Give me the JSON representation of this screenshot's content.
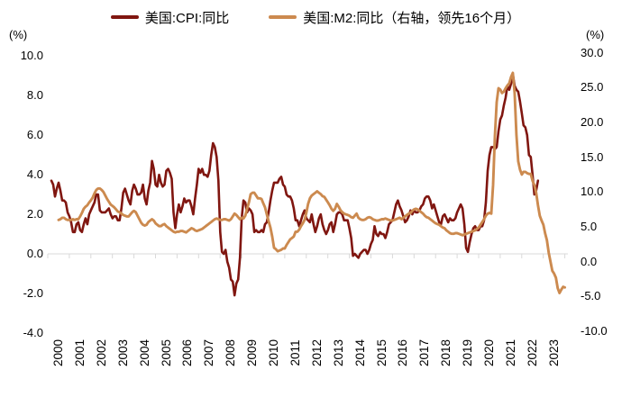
{
  "page": {
    "background": "#ffffff"
  },
  "legend": {
    "items": [
      {
        "label": "美国:CPI:同比",
        "color": "#801610"
      },
      {
        "label": "美国:M2:同比（右轴，领先16个月）",
        "color": "#CC8A4F"
      }
    ]
  },
  "axes": {
    "left_unit": "(%)",
    "right_unit": "(%)",
    "left_ticks": [
      "10.0",
      "8.0",
      "6.0",
      "4.0",
      "2.0",
      "0.0",
      "-2.0",
      "-4.0"
    ],
    "right_ticks": [
      "30.0",
      "25.0",
      "20.0",
      "15.0",
      "10.0",
      "5.0",
      "0.0",
      "-5.0",
      "-10.0"
    ],
    "x_ticks": [
      "2000",
      "2001",
      "2002",
      "2003",
      "2004",
      "2005",
      "2006",
      "2007",
      "2008",
      "2009",
      "2010",
      "2011",
      "2012",
      "2013",
      "2014",
      "2015",
      "2016",
      "2017",
      "2018",
      "2019",
      "2020",
      "2021",
      "2022",
      "2023"
    ]
  },
  "chart_data": {
    "type": "line",
    "title": "",
    "legend_position": "top-center",
    "grid": "zero-line-only",
    "zero_line_color": "#D9D9D9",
    "left_axis_range": [
      -4,
      10
    ],
    "right_axis_range": [
      -10,
      30
    ],
    "x_range_years": [
      2000,
      2024
    ],
    "series": [
      {
        "name": "美国:CPI:同比",
        "axis": "left",
        "color": "#801610",
        "stroke_width": 2.6,
        "start_year": 2001,
        "start_month": 1,
        "plot_shift_months": -16,
        "monthly_values": [
          3.7,
          3.5,
          2.9,
          3.3,
          3.6,
          3.2,
          2.7,
          2.7,
          2.6,
          2.1,
          1.9,
          1.6,
          1.1,
          1.1,
          1.5,
          1.6,
          1.2,
          1.1,
          1.5,
          1.8,
          1.5,
          2.0,
          2.2,
          2.4,
          2.6,
          3.0,
          3.0,
          2.2,
          2.1,
          2.1,
          2.1,
          2.2,
          2.3,
          2.0,
          1.8,
          1.9,
          1.9,
          1.7,
          1.7,
          2.3,
          3.1,
          3.3,
          3.0,
          2.7,
          2.5,
          3.2,
          3.5,
          3.3,
          3.0,
          3.0,
          3.1,
          3.5,
          2.8,
          2.5,
          3.2,
          3.6,
          4.7,
          4.3,
          3.5,
          3.4,
          4.0,
          3.6,
          3.4,
          3.5,
          4.2,
          4.3,
          4.1,
          3.8,
          2.1,
          1.3,
          2.0,
          2.5,
          2.1,
          2.4,
          2.8,
          2.6,
          2.7,
          2.7,
          2.4,
          2.0,
          2.8,
          3.5,
          4.3,
          4.1,
          4.3,
          4.0,
          4.0,
          3.9,
          4.2,
          5.0,
          5.6,
          5.4,
          4.9,
          3.7,
          1.1,
          0.1,
          0.0,
          0.2,
          -0.4,
          -0.7,
          -1.3,
          -1.4,
          -2.1,
          -1.5,
          -1.3,
          -0.2,
          1.8,
          2.7,
          2.6,
          2.1,
          2.3,
          2.2,
          2.0,
          1.1,
          1.2,
          1.1,
          1.1,
          1.2,
          1.1,
          1.5,
          1.6,
          2.1,
          2.7,
          3.2,
          3.6,
          3.6,
          3.6,
          3.8,
          3.9,
          3.5,
          3.4,
          3.0,
          2.9,
          2.9,
          2.7,
          2.3,
          1.7,
          1.7,
          1.4,
          1.7,
          2.0,
          2.2,
          1.8,
          1.7,
          1.6,
          2.0,
          1.5,
          1.1,
          1.4,
          1.8,
          2.0,
          1.5,
          1.2,
          1.0,
          1.2,
          1.5,
          1.6,
          1.1,
          1.5,
          2.0,
          2.1,
          2.1,
          2.0,
          1.7,
          1.7,
          1.7,
          1.3,
          0.8,
          -0.1,
          0.0,
          -0.1,
          -0.2,
          0.0,
          0.1,
          0.2,
          0.2,
          0.0,
          0.2,
          0.5,
          0.7,
          1.4,
          1.0,
          0.9,
          1.1,
          1.0,
          1.0,
          0.8,
          1.1,
          1.5,
          1.6,
          1.7,
          2.1,
          2.5,
          2.7,
          2.4,
          2.2,
          1.9,
          1.6,
          1.7,
          1.9,
          2.2,
          2.0,
          2.2,
          2.1,
          2.1,
          2.2,
          2.4,
          2.5,
          2.8,
          2.9,
          2.9,
          2.7,
          2.3,
          2.5,
          2.2,
          1.9,
          1.6,
          1.5,
          1.9,
          2.0,
          1.8,
          1.6,
          1.8,
          1.7,
          1.7,
          1.8,
          2.1,
          2.3,
          2.5,
          2.3,
          1.5,
          0.3,
          0.1,
          0.6,
          1.0,
          1.3,
          1.4,
          1.2,
          1.2,
          1.4,
          1.4,
          1.7,
          2.6,
          4.2,
          5.0,
          5.4,
          5.4,
          5.3,
          5.4,
          6.2,
          6.8,
          7.0,
          7.5,
          7.9,
          8.5,
          8.3,
          8.6,
          9.1,
          8.5,
          8.3,
          8.2,
          7.7,
          7.1,
          6.5,
          6.4,
          6.0,
          5.0,
          4.9,
          4.0,
          3.0,
          3.2,
          3.7
        ]
      },
      {
        "name": "美国:M2:同比（右轴，领先16个月）",
        "axis": "right",
        "color": "#CC8A4F",
        "stroke_width": 2.9,
        "start_year": 2000,
        "start_month": 1,
        "plot_shift_months": 0,
        "monthly_values": [
          6.0,
          6.1,
          6.3,
          6.3,
          6.1,
          6.0,
          6.0,
          6.0,
          6.1,
          6.0,
          6.1,
          6.1,
          6.5,
          7.0,
          7.6,
          7.9,
          8.1,
          8.5,
          8.8,
          9.2,
          9.8,
          10.3,
          10.5,
          10.5,
          10.3,
          10.0,
          9.5,
          9.0,
          8.6,
          8.2,
          8.0,
          7.8,
          7.5,
          7.2,
          7.1,
          6.9,
          6.7,
          6.6,
          6.5,
          6.5,
          6.8,
          7.1,
          7.3,
          7.1,
          6.6,
          6.1,
          5.6,
          5.3,
          5.2,
          5.3,
          5.7,
          5.9,
          6.1,
          5.9,
          5.5,
          5.3,
          5.1,
          5.1,
          5.3,
          5.4,
          5.1,
          4.9,
          4.7,
          4.5,
          4.3,
          4.2,
          4.3,
          4.3,
          4.4,
          4.4,
          4.3,
          4.2,
          4.4,
          4.6,
          4.8,
          4.7,
          4.5,
          4.4,
          4.5,
          4.6,
          4.7,
          4.9,
          5.1,
          5.3,
          5.5,
          5.7,
          5.9,
          6.1,
          6.2,
          6.1,
          6.0,
          6.0,
          6.1,
          6.1,
          6.0,
          5.9,
          6.1,
          6.5,
          6.9,
          6.7,
          6.4,
          6.1,
          6.3,
          6.2,
          6.6,
          7.6,
          8.5,
          9.7,
          9.9,
          9.9,
          9.5,
          9.1,
          9.1,
          9.0,
          8.4,
          7.8,
          6.8,
          5.8,
          4.9,
          3.6,
          2.0,
          1.8,
          1.5,
          1.6,
          1.7,
          1.9,
          1.9,
          2.4,
          2.8,
          3.2,
          3.4,
          3.6,
          4.3,
          4.3,
          4.6,
          5.1,
          5.5,
          6.0,
          7.0,
          8.3,
          9.1,
          9.5,
          9.7,
          9.9,
          10.1,
          9.9,
          9.7,
          9.4,
          9.3,
          8.9,
          8.5,
          8.1,
          7.6,
          7.3,
          7.6,
          8.3,
          7.9,
          7.4,
          7.1,
          6.9,
          6.8,
          6.7,
          6.6,
          6.4,
          6.3,
          6.6,
          6.9,
          6.3,
          6.1,
          6.0,
          6.0,
          6.1,
          6.3,
          6.4,
          6.3,
          6.1,
          6.0,
          5.9,
          5.9,
          6.0,
          6.1,
          6.1,
          6.2,
          6.1,
          6.0,
          5.9,
          5.9,
          6.0,
          6.1,
          6.2,
          6.3,
          6.1,
          6.3,
          6.5,
          6.7,
          6.9,
          7.0,
          7.3,
          7.5,
          7.6,
          7.5,
          7.3,
          7.1,
          6.9,
          6.6,
          6.4,
          6.3,
          6.1,
          5.9,
          5.7,
          5.5,
          5.4,
          5.3,
          5.1,
          4.9,
          4.8,
          4.5,
          4.3,
          4.1,
          4.0,
          4.0,
          4.1,
          4.1,
          4.0,
          3.9,
          3.8,
          3.9,
          4.0,
          4.1,
          4.2,
          4.3,
          4.4,
          4.5,
          4.7,
          4.9,
          5.3,
          5.7,
          6.1,
          6.6,
          6.9,
          7.0,
          6.9,
          11.0,
          18.0,
          22.9,
          24.9,
          24.7,
          24.2,
          24.4,
          24.9,
          25.3,
          25.6,
          26.5,
          27.1,
          24.2,
          18.2,
          14.4,
          13.2,
          12.5,
          12.9,
          12.9,
          12.7,
          12.6,
          12.6,
          11.6,
          11.0,
          9.9,
          8.1,
          6.6,
          5.9,
          5.3,
          4.1,
          3.1,
          1.3,
          0.0,
          -1.3,
          -1.7,
          -2.3,
          -3.8,
          -4.5,
          -4.0,
          -3.6,
          -3.7
        ]
      }
    ]
  }
}
